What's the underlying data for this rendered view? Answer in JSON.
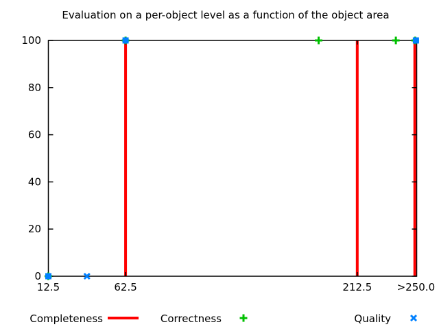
{
  "chart_data": {
    "type": "scatter",
    "title": "Evaluation on a per-object level as a function of the object area",
    "xlabel": "",
    "ylabel": "",
    "xlim": [
      12.5,
      251
    ],
    "ylim": [
      0,
      100
    ],
    "grid": false,
    "legend_position": "bottom",
    "x_ticks": [
      {
        "value": 12.5,
        "label": "12.5"
      },
      {
        "value": 62.5,
        "label": "62.5"
      },
      {
        "value": 212.5,
        "label": "212.5"
      },
      {
        "value": 250.5,
        "label": ">250.0"
      }
    ],
    "y_ticks": [
      {
        "value": 0,
        "label": "0"
      },
      {
        "value": 20,
        "label": "20"
      },
      {
        "value": 40,
        "label": "40"
      },
      {
        "value": 60,
        "label": "60"
      },
      {
        "value": 80,
        "label": "80"
      },
      {
        "value": 100,
        "label": "100"
      }
    ],
    "series": [
      {
        "name": "Completeness",
        "style": "impulses",
        "color": "#ff0000",
        "points": [
          {
            "x": 62.5,
            "y": 100
          },
          {
            "x": 212.5,
            "y": 100
          },
          {
            "x": 250.5,
            "y": 100
          }
        ]
      },
      {
        "name": "Correctness",
        "style": "points",
        "marker": "plus",
        "color": "#00c000",
        "points": [
          {
            "x": 12.5,
            "y": 0
          },
          {
            "x": 62.5,
            "y": 100
          },
          {
            "x": 187.5,
            "y": 100
          },
          {
            "x": 237.5,
            "y": 100
          },
          {
            "x": 250,
            "y": 100
          }
        ]
      },
      {
        "name": "Quality",
        "style": "points",
        "marker": "x",
        "color": "#0080ff",
        "points": [
          {
            "x": 12.5,
            "y": 0,
            "marker": "square"
          },
          {
            "x": 37.5,
            "y": 0
          },
          {
            "x": 62.5,
            "y": 100,
            "marker": "square"
          },
          {
            "x": 250.5,
            "y": 100,
            "marker": "square"
          }
        ]
      }
    ],
    "legend": [
      {
        "label": "Completeness",
        "sample": "line",
        "color": "#ff0000"
      },
      {
        "label": "Correctness",
        "sample": "plus",
        "color": "#00c000"
      },
      {
        "label": "Quality",
        "sample": "x",
        "color": "#0080ff"
      }
    ],
    "axis_color": "#000000"
  }
}
